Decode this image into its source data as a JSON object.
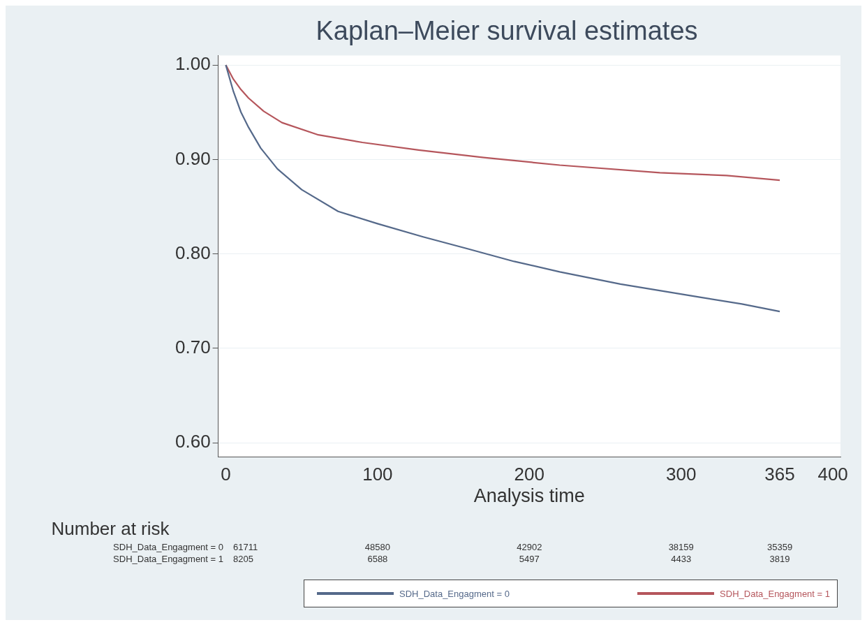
{
  "chart_data": {
    "type": "line",
    "title": "Kaplan–Meier survival estimates",
    "xlabel": "Analysis time",
    "xlim": [
      -5,
      405
    ],
    "xticks": [
      0,
      100,
      200,
      300,
      365,
      400
    ],
    "ylim": [
      0.585,
      1.01
    ],
    "yticks": [
      {
        "value": 0.6,
        "label": "0.60"
      },
      {
        "value": 0.7,
        "label": "0.70"
      },
      {
        "value": 0.8,
        "label": "0.80"
      },
      {
        "value": 0.9,
        "label": "0.90"
      },
      {
        "value": 1,
        "label": "1.00"
      }
    ],
    "grid": "y",
    "legend": "bottom",
    "marker": "none",
    "line_style": "solid",
    "series": [
      {
        "name": "SDH_Data_Engagment = 0",
        "color": "#55698a",
        "x": [
          0,
          5,
          10,
          15,
          23,
          34,
          50,
          74,
          100,
          130,
          158,
          190,
          220,
          260,
          313,
          340,
          365
        ],
        "values": [
          1,
          0.972,
          0.95,
          0.934,
          0.912,
          0.89,
          0.868,
          0.845,
          0.832,
          0.818,
          0.806,
          0.792,
          0.781,
          0.768,
          0.754,
          0.747,
          0.739
        ]
      },
      {
        "name": "SDH_Data_Engagment = 1",
        "color": "#b5565c",
        "x": [
          0,
          5,
          10,
          15,
          25,
          37,
          61,
          90,
          127,
          170,
          220,
          286,
          330,
          365
        ],
        "values": [
          1,
          0.985,
          0.974,
          0.965,
          0.951,
          0.939,
          0.926,
          0.918,
          0.91,
          0.902,
          0.894,
          0.886,
          0.883,
          0.878
        ]
      }
    ],
    "annotations": [
      "Number at risk",
      "SDH_Data_Engagment = 0",
      "61711",
      "48580",
      "42902",
      "38159",
      "35359",
      "SDH_Data_Engagment = 1",
      "8205",
      "6588",
      "5497",
      "4433",
      "3819"
    ]
  }
}
